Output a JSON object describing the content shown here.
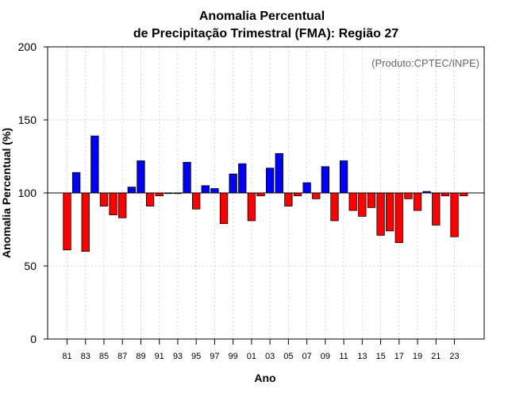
{
  "chart_data": {
    "type": "bar",
    "title_line1": "Anomalia Percentual",
    "title_line2": "de Precipitação Trimestral (FMA): Região 27",
    "xlabel": "Ano",
    "ylabel": "Anomalia Percentual (%)",
    "credit": "(Produto:CPTEC/INPE)",
    "ylim": [
      0,
      200
    ],
    "yticks": [
      0,
      50,
      100,
      150,
      200
    ],
    "baseline": 100,
    "grid": true,
    "x_tick_labels": [
      "81",
      "83",
      "85",
      "87",
      "89",
      "91",
      "93",
      "95",
      "97",
      "99",
      "01",
      "03",
      "05",
      "07",
      "09",
      "11",
      "13",
      "15",
      "17",
      "19",
      "21",
      "23"
    ],
    "categories": [
      "1981",
      "1982",
      "1983",
      "1984",
      "1985",
      "1986",
      "1987",
      "1988",
      "1989",
      "1990",
      "1991",
      "1992",
      "1993",
      "1994",
      "1995",
      "1996",
      "1997",
      "1998",
      "1999",
      "2000",
      "2001",
      "2002",
      "2003",
      "2004",
      "2005",
      "2006",
      "2007",
      "2008",
      "2009",
      "2010",
      "2011",
      "2012",
      "2013",
      "2014",
      "2015",
      "2016",
      "2017",
      "2018",
      "2019",
      "2020",
      "2021",
      "2022",
      "2023",
      "2024"
    ],
    "values": [
      61,
      114,
      60,
      139,
      91,
      85,
      83,
      104,
      122,
      91,
      98,
      100,
      100,
      121,
      89,
      105,
      103,
      79,
      113,
      120,
      81,
      98,
      117,
      127,
      91,
      98,
      107,
      96,
      118,
      81,
      122,
      88,
      84,
      90,
      71,
      74,
      66,
      96,
      88,
      101,
      78,
      98,
      70,
      98
    ],
    "colors": {
      "above": "#0000ff",
      "below": "#ff0000",
      "outline": "#000000",
      "grid": "#d3d3d3"
    }
  }
}
